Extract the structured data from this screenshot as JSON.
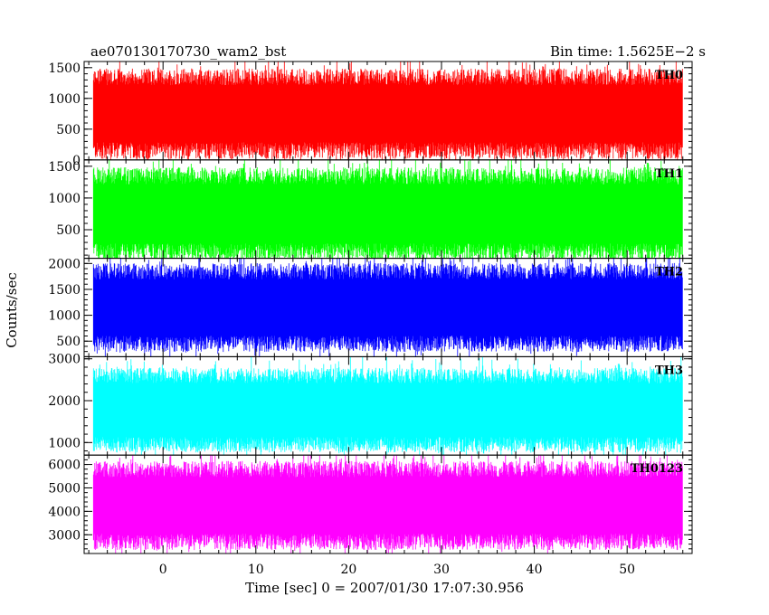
{
  "header": {
    "left_title": "ae070130170730_wam2_bst",
    "right_title": "Bin time: 1.5625E−2 s"
  },
  "chart_data": {
    "type": "line",
    "title": "ae070130170730_wam2_bst",
    "xlabel": "Time [sec] 0 = 2007/01/30 17:07:30.956",
    "ylabel": "Counts/sec",
    "xlim": [
      -8.5,
      57
    ],
    "xticks": [
      0,
      10,
      20,
      30,
      40,
      50
    ],
    "x_start": -7.5,
    "x_end": 56,
    "bin_time": 0.015625,
    "grid": false,
    "panels": [
      {
        "name": "TH0",
        "color": "#ff0000",
        "ylim": [
          0,
          1600
        ],
        "yticks": [
          0,
          500,
          1000,
          1500
        ],
        "typical_min": 150,
        "typical_max": 1350,
        "mean": 700
      },
      {
        "name": "TH1",
        "color": "#00ff00",
        "ylim": [
          50,
          1600
        ],
        "yticks": [
          500,
          1000,
          1500
        ],
        "typical_min": 150,
        "typical_max": 1350,
        "mean": 700
      },
      {
        "name": "TH2",
        "color": "#0000ff",
        "ylim": [
          200,
          2100
        ],
        "yticks": [
          500,
          1000,
          1500,
          2000
        ],
        "typical_min": 450,
        "typical_max": 1850,
        "mean": 1100
      },
      {
        "name": "TH3",
        "color": "#00ffff",
        "ylim": [
          700,
          3050
        ],
        "yticks": [
          1000,
          2000,
          3000
        ],
        "typical_min": 950,
        "typical_max": 2600,
        "mean": 1700
      },
      {
        "name": "TH0123",
        "color": "#ff00ff",
        "ylim": [
          2200,
          6400
        ],
        "yticks": [
          3000,
          4000,
          5000,
          6000
        ],
        "typical_min": 2700,
        "typical_max": 5800,
        "mean": 4100
      }
    ]
  }
}
